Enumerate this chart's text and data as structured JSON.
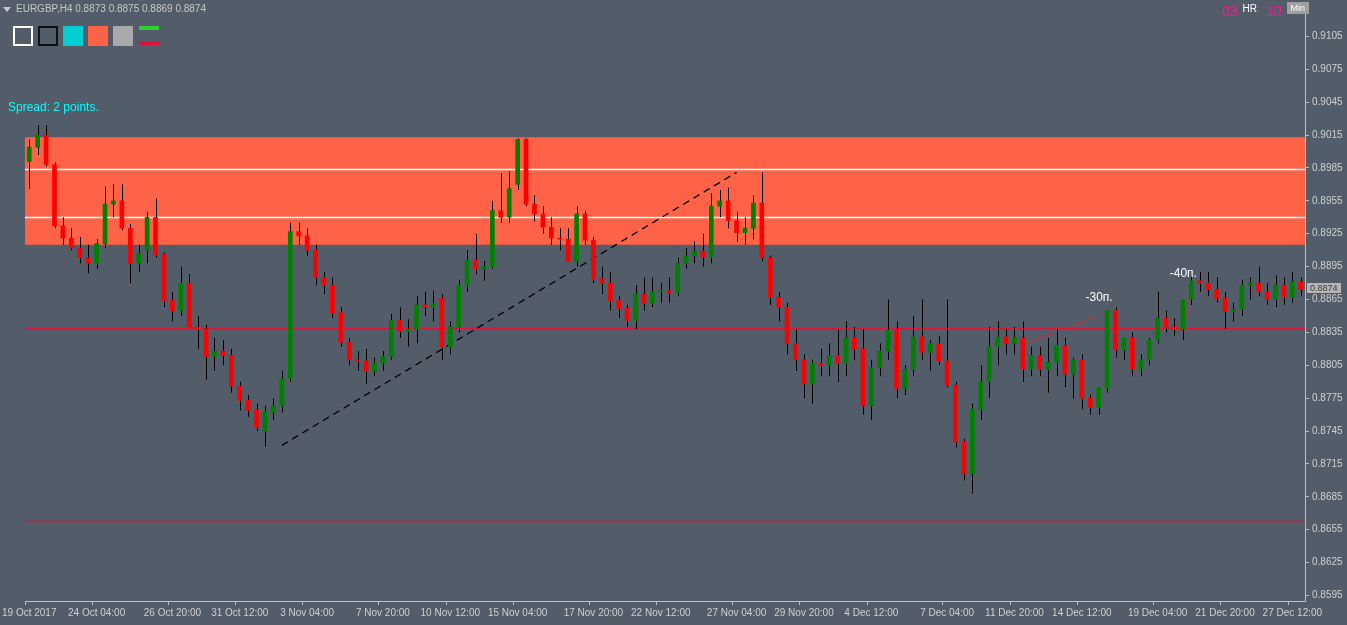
{
  "chart_data": {
    "type": "candlestick",
    "title": "EURGBP,H4 0.8873 0.8875 0.8869 0.8874",
    "categories": [
      "19 Oct 2017",
      null,
      null,
      null,
      null,
      null,
      null,
      null,
      "24 Oct 04:00",
      null,
      null,
      null,
      null,
      null,
      null,
      null,
      null,
      "26 Oct 20:00",
      null,
      null,
      null,
      null,
      null,
      null,
      null,
      "31 Oct 12:00",
      null,
      null,
      null,
      null,
      null,
      null,
      null,
      "3 Nov 04:00",
      null,
      null,
      null,
      null,
      null,
      null,
      null,
      null,
      "7 Nov 20:00",
      null,
      null,
      null,
      null,
      null,
      null,
      null,
      "10 Nov 12:00",
      null,
      null,
      null,
      null,
      null,
      null,
      null,
      "15 Nov 04:00",
      null,
      null,
      null,
      null,
      null,
      null,
      null,
      null,
      "17 Nov 20:00",
      null,
      null,
      null,
      null,
      null,
      null,
      null,
      "22 Nov 12:00",
      null,
      null,
      null,
      null,
      null,
      null,
      null,
      null,
      "27 Nov 04:00",
      null,
      null,
      null,
      null,
      null,
      null,
      null,
      "29 Nov 20:00",
      null,
      null,
      null,
      null,
      null,
      null,
      null,
      "4 Dec 12:00",
      null,
      null,
      null,
      null,
      null,
      null,
      null,
      null,
      "7 Dec 04:00",
      null,
      null,
      null,
      null,
      null,
      null,
      null,
      "11 Dec 20:00",
      null,
      null,
      null,
      null,
      null,
      null,
      null,
      "14 Dec 12:00",
      null,
      null,
      null,
      null,
      null,
      null,
      null,
      null,
      "19 Dec 04:00",
      null,
      null,
      null,
      null,
      null,
      null,
      null,
      "21 Dec 20:00",
      null,
      null,
      null,
      null,
      null,
      null,
      null,
      "27 Dec 12:00",
      null
    ],
    "ohlc": [
      [
        0.8991,
        0.9011,
        0.8966,
        0.9004
      ],
      [
        0.9004,
        0.9024,
        0.8997,
        0.9015
      ],
      [
        0.9015,
        0.9024,
        0.8986,
        0.8988
      ],
      [
        0.8988,
        0.899,
        0.893,
        0.8932
      ],
      [
        0.8932,
        0.894,
        0.8915,
        0.8921
      ],
      [
        0.8921,
        0.893,
        0.891,
        0.8912
      ],
      [
        0.8912,
        0.8922,
        0.8898,
        0.8903
      ],
      [
        0.8903,
        0.8915,
        0.8889,
        0.8898
      ],
      [
        0.8898,
        0.892,
        0.8893,
        0.8916
      ],
      [
        0.8916,
        0.8968,
        0.8912,
        0.8952
      ],
      [
        0.8952,
        0.897,
        0.894,
        0.8955
      ],
      [
        0.8955,
        0.897,
        0.8928,
        0.893
      ],
      [
        0.893,
        0.8934,
        0.888,
        0.8898
      ],
      [
        0.8898,
        0.8915,
        0.889,
        0.8907
      ],
      [
        0.891,
        0.8945,
        0.8898,
        0.894
      ],
      [
        0.894,
        0.8957,
        0.8903,
        0.8906
      ],
      [
        0.8906,
        0.8908,
        0.8858,
        0.8864
      ],
      [
        0.8864,
        0.8872,
        0.8845,
        0.8855
      ],
      [
        0.8855,
        0.8895,
        0.885,
        0.888
      ],
      [
        0.888,
        0.8888,
        0.884,
        0.884
      ],
      [
        0.884,
        0.885,
        0.882,
        0.8838
      ],
      [
        0.8838,
        0.8842,
        0.8792,
        0.8813
      ],
      [
        0.8813,
        0.883,
        0.88,
        0.8818
      ],
      [
        0.8818,
        0.8828,
        0.8805,
        0.8814
      ],
      [
        0.8814,
        0.882,
        0.878,
        0.8786
      ],
      [
        0.8786,
        0.879,
        0.8764,
        0.8773
      ],
      [
        0.8773,
        0.8778,
        0.8758,
        0.8764
      ],
      [
        0.8764,
        0.877,
        0.8745,
        0.8748
      ],
      [
        0.8745,
        0.8768,
        0.8731,
        0.8762
      ],
      [
        0.8762,
        0.8775,
        0.8755,
        0.8768
      ],
      [
        0.8768,
        0.88,
        0.8762,
        0.8793
      ],
      [
        0.8793,
        0.8935,
        0.879,
        0.8927
      ],
      [
        0.8927,
        0.8935,
        0.8915,
        0.8923
      ],
      [
        0.8923,
        0.893,
        0.8905,
        0.891
      ],
      [
        0.891,
        0.8915,
        0.8878,
        0.8885
      ],
      [
        0.8885,
        0.889,
        0.887,
        0.8878
      ],
      [
        0.8878,
        0.8885,
        0.8848,
        0.8853
      ],
      [
        0.8853,
        0.8858,
        0.8822,
        0.8826
      ],
      [
        0.8826,
        0.883,
        0.8805,
        0.881
      ],
      [
        0.881,
        0.8818,
        0.88,
        0.8809
      ],
      [
        0.8809,
        0.882,
        0.8788,
        0.88
      ],
      [
        0.88,
        0.8812,
        0.8795,
        0.8807
      ],
      [
        0.8807,
        0.8818,
        0.88,
        0.8813
      ],
      [
        0.8813,
        0.8852,
        0.881,
        0.8846
      ],
      [
        0.8846,
        0.8858,
        0.883,
        0.8836
      ],
      [
        0.8836,
        0.8847,
        0.8822,
        0.8838
      ],
      [
        0.8838,
        0.8868,
        0.8825,
        0.886
      ],
      [
        0.886,
        0.8872,
        0.885,
        0.8858
      ],
      [
        0.8858,
        0.8873,
        0.8845,
        0.8861
      ],
      [
        0.8866,
        0.887,
        0.881,
        0.8822
      ],
      [
        0.8822,
        0.8845,
        0.8815,
        0.884
      ],
      [
        0.884,
        0.8883,
        0.8835,
        0.8878
      ],
      [
        0.8878,
        0.891,
        0.8872,
        0.8901
      ],
      [
        0.8901,
        0.8925,
        0.8888,
        0.8893
      ],
      [
        0.8893,
        0.89,
        0.8882,
        0.8895
      ],
      [
        0.8895,
        0.8955,
        0.8893,
        0.8946
      ],
      [
        0.8946,
        0.898,
        0.8935,
        0.894
      ],
      [
        0.894,
        0.8982,
        0.8935,
        0.8966
      ],
      [
        0.897,
        0.9012,
        0.8965,
        0.9011
      ],
      [
        0.9011,
        0.9012,
        0.895,
        0.8952
      ],
      [
        0.8952,
        0.896,
        0.8936,
        0.8943
      ],
      [
        0.8943,
        0.895,
        0.8925,
        0.8931
      ],
      [
        0.8931,
        0.894,
        0.8915,
        0.8921
      ],
      [
        0.8921,
        0.893,
        0.891,
        0.892
      ],
      [
        0.892,
        0.893,
        0.89,
        0.89
      ],
      [
        0.89,
        0.895,
        0.8895,
        0.8943
      ],
      [
        0.8943,
        0.8946,
        0.8915,
        0.8919
      ],
      [
        0.8919,
        0.8922,
        0.888,
        0.8884
      ],
      [
        0.8884,
        0.8895,
        0.887,
        0.888
      ],
      [
        0.888,
        0.889,
        0.8855,
        0.8864
      ],
      [
        0.8864,
        0.8868,
        0.8848,
        0.8857
      ],
      [
        0.8857,
        0.886,
        0.884,
        0.8846
      ],
      [
        0.8846,
        0.8878,
        0.8838,
        0.887
      ],
      [
        0.887,
        0.8885,
        0.8855,
        0.8862
      ],
      [
        0.8862,
        0.8885,
        0.8858,
        0.8872
      ],
      [
        0.8872,
        0.888,
        0.8862,
        0.8873
      ],
      [
        0.8873,
        0.8885,
        0.8862,
        0.8871
      ],
      [
        0.8871,
        0.8903,
        0.8868,
        0.8898
      ],
      [
        0.8898,
        0.8912,
        0.8893,
        0.8905
      ],
      [
        0.8905,
        0.8918,
        0.8898,
        0.8909
      ],
      [
        0.8909,
        0.8925,
        0.8895,
        0.8904
      ],
      [
        0.8904,
        0.8962,
        0.8898,
        0.895
      ],
      [
        0.895,
        0.8965,
        0.894,
        0.8955
      ],
      [
        0.8955,
        0.8967,
        0.893,
        0.8937
      ],
      [
        0.8937,
        0.8945,
        0.8918,
        0.8926
      ],
      [
        0.8926,
        0.894,
        0.8915,
        0.893
      ],
      [
        0.893,
        0.896,
        0.892,
        0.8953
      ],
      [
        0.8953,
        0.8981,
        0.89,
        0.8903
      ],
      [
        0.8903,
        0.8905,
        0.886,
        0.8867
      ],
      [
        0.8867,
        0.8872,
        0.8845,
        0.8858
      ],
      [
        0.8858,
        0.8862,
        0.8815,
        0.8825
      ],
      [
        0.8825,
        0.8838,
        0.88,
        0.881
      ],
      [
        0.881,
        0.8815,
        0.8775,
        0.8788
      ],
      [
        0.8788,
        0.881,
        0.877,
        0.8807
      ],
      [
        0.8807,
        0.882,
        0.8795,
        0.8805
      ],
      [
        0.8805,
        0.8825,
        0.8795,
        0.8814
      ],
      [
        0.8814,
        0.8838,
        0.879,
        0.8807
      ],
      [
        0.8807,
        0.8845,
        0.8795,
        0.883
      ],
      [
        0.883,
        0.884,
        0.881,
        0.882
      ],
      [
        0.882,
        0.8838,
        0.876,
        0.8768
      ],
      [
        0.8768,
        0.881,
        0.8755,
        0.8803
      ],
      [
        0.8803,
        0.8825,
        0.8795,
        0.8818
      ],
      [
        0.8818,
        0.8865,
        0.881,
        0.8837
      ],
      [
        0.8837,
        0.8845,
        0.8775,
        0.8784
      ],
      [
        0.8784,
        0.8805,
        0.8778,
        0.8801
      ],
      [
        0.8801,
        0.885,
        0.8795,
        0.8831
      ],
      [
        0.8831,
        0.8865,
        0.881,
        0.8817
      ],
      [
        0.8817,
        0.8828,
        0.88,
        0.8825
      ],
      [
        0.8825,
        0.8832,
        0.8805,
        0.8809
      ],
      [
        0.8809,
        0.8865,
        0.8785,
        0.8787
      ],
      [
        0.8787,
        0.879,
        0.873,
        0.8735
      ],
      [
        0.8735,
        0.8738,
        0.87,
        0.8706
      ],
      [
        0.8706,
        0.877,
        0.8688,
        0.8765
      ],
      [
        0.8765,
        0.8805,
        0.8755,
        0.879
      ],
      [
        0.879,
        0.884,
        0.8775,
        0.8822
      ],
      [
        0.8822,
        0.8845,
        0.8805,
        0.8831
      ],
      [
        0.8831,
        0.8838,
        0.8815,
        0.8825
      ],
      [
        0.8825,
        0.884,
        0.8815,
        0.883
      ],
      [
        0.883,
        0.8845,
        0.879,
        0.8802
      ],
      [
        0.8802,
        0.8822,
        0.8795,
        0.8814
      ],
      [
        0.8814,
        0.8822,
        0.8795,
        0.8801
      ],
      [
        0.8801,
        0.883,
        0.878,
        0.8808
      ],
      [
        0.8808,
        0.8838,
        0.8795,
        0.8823
      ],
      [
        0.8823,
        0.883,
        0.8785,
        0.8797
      ],
      [
        0.8797,
        0.8812,
        0.8775,
        0.881
      ],
      [
        0.881,
        0.8815,
        0.8765,
        0.8775
      ],
      [
        0.8775,
        0.8778,
        0.876,
        0.8767
      ],
      [
        0.8767,
        0.8785,
        0.876,
        0.8784
      ],
      [
        0.8784,
        0.8855,
        0.878,
        0.8855
      ],
      [
        0.8855,
        0.8858,
        0.8812,
        0.8819
      ],
      [
        0.8819,
        0.883,
        0.881,
        0.883
      ],
      [
        0.883,
        0.8835,
        0.8795,
        0.8802
      ],
      [
        0.8802,
        0.8815,
        0.8795,
        0.881
      ],
      [
        0.881,
        0.883,
        0.8805,
        0.8828
      ],
      [
        0.8828,
        0.8872,
        0.8825,
        0.8848
      ],
      [
        0.8848,
        0.8855,
        0.8835,
        0.884
      ],
      [
        0.884,
        0.8848,
        0.8832,
        0.8838
      ],
      [
        0.8838,
        0.8865,
        0.8828,
        0.8865
      ],
      [
        0.8865,
        0.8887,
        0.886,
        0.8882
      ],
      [
        0.8882,
        0.889,
        0.8872,
        0.888
      ],
      [
        0.888,
        0.889,
        0.8868,
        0.8874
      ],
      [
        0.8874,
        0.8885,
        0.8862,
        0.8866
      ],
      [
        0.8866,
        0.8872,
        0.8838,
        0.8854
      ],
      [
        0.8854,
        0.8862,
        0.8845,
        0.8856
      ],
      [
        0.8856,
        0.8883,
        0.885,
        0.8878
      ],
      [
        0.8878,
        0.8885,
        0.8865,
        0.888
      ],
      [
        0.888,
        0.8895,
        0.8868,
        0.8872
      ],
      [
        0.8872,
        0.888,
        0.886,
        0.8865
      ],
      [
        0.8865,
        0.8887,
        0.8858,
        0.8878
      ],
      [
        0.8878,
        0.8885,
        0.886,
        0.8867
      ],
      [
        0.8867,
        0.889,
        0.8862,
        0.8881
      ],
      [
        0.8881,
        0.8885,
        0.8868,
        0.8874
      ]
    ],
    "series": [
      {
        "type": "line",
        "color": "#000000",
        "line_style": "dashed",
        "values": [
          null,
          null,
          null,
          null,
          null,
          null,
          null,
          null,
          null,
          null,
          null,
          null,
          null,
          null,
          null,
          null,
          null,
          null,
          null,
          null,
          null,
          null,
          null,
          null,
          null,
          null,
          null,
          null,
          null,
          null,
          0.8732,
          null,
          null,
          null,
          null,
          null,
          null,
          null,
          null,
          null,
          null,
          null,
          null,
          null,
          null,
          null,
          null,
          null,
          null,
          null,
          null,
          null,
          null,
          null,
          null,
          null,
          null,
          null,
          null,
          null,
          null,
          null,
          null,
          null,
          null,
          null,
          null,
          null,
          null,
          null,
          null,
          null,
          null,
          null,
          null,
          null,
          null,
          null,
          null,
          null,
          null,
          null,
          null,
          null,
          0.8981,
          null,
          null,
          null,
          null,
          null,
          null,
          null,
          null,
          null,
          null,
          null,
          null,
          null,
          null,
          null,
          null,
          null,
          null,
          null,
          null,
          null,
          null,
          null,
          null,
          null,
          null,
          null,
          null,
          null,
          null,
          null,
          null,
          null,
          null,
          null,
          null,
          null,
          null,
          null,
          null,
          null,
          null,
          null,
          null,
          null,
          null,
          null,
          null,
          null,
          null,
          null,
          null,
          null,
          null,
          null,
          null,
          null,
          null,
          null,
          null,
          null,
          null,
          null,
          null,
          null,
          null,
          null
        ]
      },
      {
        "type": "line",
        "name": "-30п.",
        "color": "#ff2020",
        "line_style": "dotted",
        "values": [
          null,
          null,
          null,
          null,
          null,
          null,
          null,
          null,
          null,
          null,
          null,
          null,
          null,
          null,
          null,
          null,
          null,
          null,
          null,
          null,
          null,
          null,
          null,
          null,
          null,
          null,
          null,
          null,
          null,
          null,
          null,
          null,
          null,
          null,
          null,
          null,
          null,
          null,
          null,
          null,
          null,
          null,
          null,
          null,
          null,
          null,
          null,
          null,
          null,
          null,
          null,
          null,
          null,
          null,
          null,
          null,
          null,
          null,
          null,
          null,
          null,
          null,
          null,
          null,
          null,
          null,
          null,
          null,
          null,
          null,
          null,
          null,
          null,
          null,
          null,
          null,
          null,
          null,
          null,
          null,
          null,
          null,
          null,
          null,
          null,
          null,
          null,
          null,
          null,
          null,
          null,
          null,
          null,
          null,
          null,
          null,
          null,
          null,
          null,
          null,
          null,
          null,
          null,
          null,
          null,
          null,
          null,
          null,
          null,
          null,
          null,
          null,
          null,
          null,
          null,
          null,
          null,
          0.8821,
          null,
          null,
          null,
          null,
          null,
          null,
          null,
          null,
          null,
          null,
          0.8853,
          null,
          null,
          null,
          null,
          null,
          null,
          null,
          null,
          null,
          null,
          null,
          null,
          null,
          null,
          null,
          null,
          null,
          null,
          null,
          null,
          null,
          null,
          null
        ]
      },
      {
        "type": "line",
        "name": "-40п.",
        "color": "#ff2020",
        "line_style": "dotted",
        "values": [
          null,
          null,
          null,
          null,
          null,
          null,
          null,
          null,
          null,
          null,
          null,
          null,
          null,
          null,
          null,
          null,
          null,
          null,
          null,
          null,
          null,
          null,
          null,
          null,
          null,
          null,
          null,
          null,
          null,
          null,
          null,
          null,
          null,
          null,
          null,
          null,
          null,
          null,
          null,
          null,
          null,
          null,
          null,
          null,
          null,
          null,
          null,
          null,
          null,
          null,
          null,
          null,
          null,
          null,
          null,
          null,
          null,
          null,
          null,
          null,
          null,
          null,
          null,
          null,
          null,
          null,
          null,
          null,
          null,
          null,
          null,
          null,
          null,
          null,
          null,
          null,
          null,
          null,
          null,
          null,
          null,
          null,
          null,
          null,
          null,
          null,
          null,
          null,
          null,
          null,
          null,
          null,
          null,
          null,
          null,
          null,
          null,
          null,
          null,
          null,
          null,
          null,
          null,
          null,
          null,
          null,
          null,
          null,
          null,
          null,
          null,
          null,
          null,
          null,
          null,
          null,
          null,
          null,
          null,
          null,
          null,
          null,
          null,
          null,
          null,
          null,
          null,
          null,
          null,
          null,
          null,
          null,
          null,
          null,
          null,
          null,
          null,
          0.8836,
          0.8875,
          null,
          null,
          null,
          null,
          null,
          null,
          null,
          null,
          null,
          null,
          null,
          null,
          null
        ]
      }
    ],
    "ylim": [
      0.859,
      0.913
    ],
    "yticks": [
      0.8595,
      0.8625,
      0.8655,
      0.8685,
      0.8715,
      0.8745,
      0.8775,
      0.8805,
      0.8835,
      0.8865,
      0.8895,
      0.8925,
      0.8955,
      0.8985,
      0.9015,
      0.9045,
      0.9075,
      0.9105
    ],
    "bands": [
      {
        "axis": "y",
        "from": 0.8915,
        "to": 0.9013,
        "color": "#ff6347"
      }
    ],
    "ref_lines": [
      {
        "axis": "y",
        "value": 0.8984,
        "color": "#ffffff"
      },
      {
        "axis": "y",
        "value": 0.894,
        "color": "#ffffff"
      },
      {
        "axis": "y",
        "value": 0.8839,
        "color": "#dc143c"
      },
      {
        "axis": "y",
        "value": 0.8663,
        "color": "#dc143c"
      }
    ],
    "annotations": [
      "Spread: 2 points.",
      "03 HR",
      "10 Min",
      "0.8874"
    ],
    "grid": false,
    "legend": false
  }
}
